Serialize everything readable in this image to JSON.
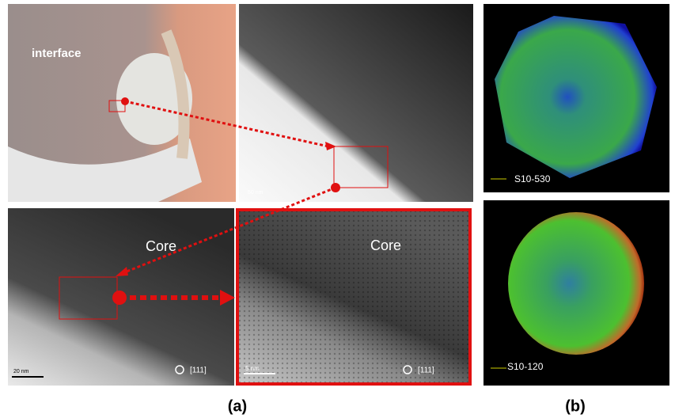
{
  "panels": {
    "top_left": {
      "label": "interface"
    },
    "top_middle": {
      "scale": "50 nm"
    },
    "bottom_left": {
      "label": "Core",
      "scale": "20 nm",
      "zone_axis": "[111]"
    },
    "bottom_right": {
      "label": "Core",
      "scale": "5 nm",
      "zone_axis": "[111]"
    },
    "right_top": {
      "label": "S10-530"
    },
    "right_bottom": {
      "label": "S10-120"
    }
  },
  "captions": {
    "a": "(a)",
    "b": "(b)"
  }
}
